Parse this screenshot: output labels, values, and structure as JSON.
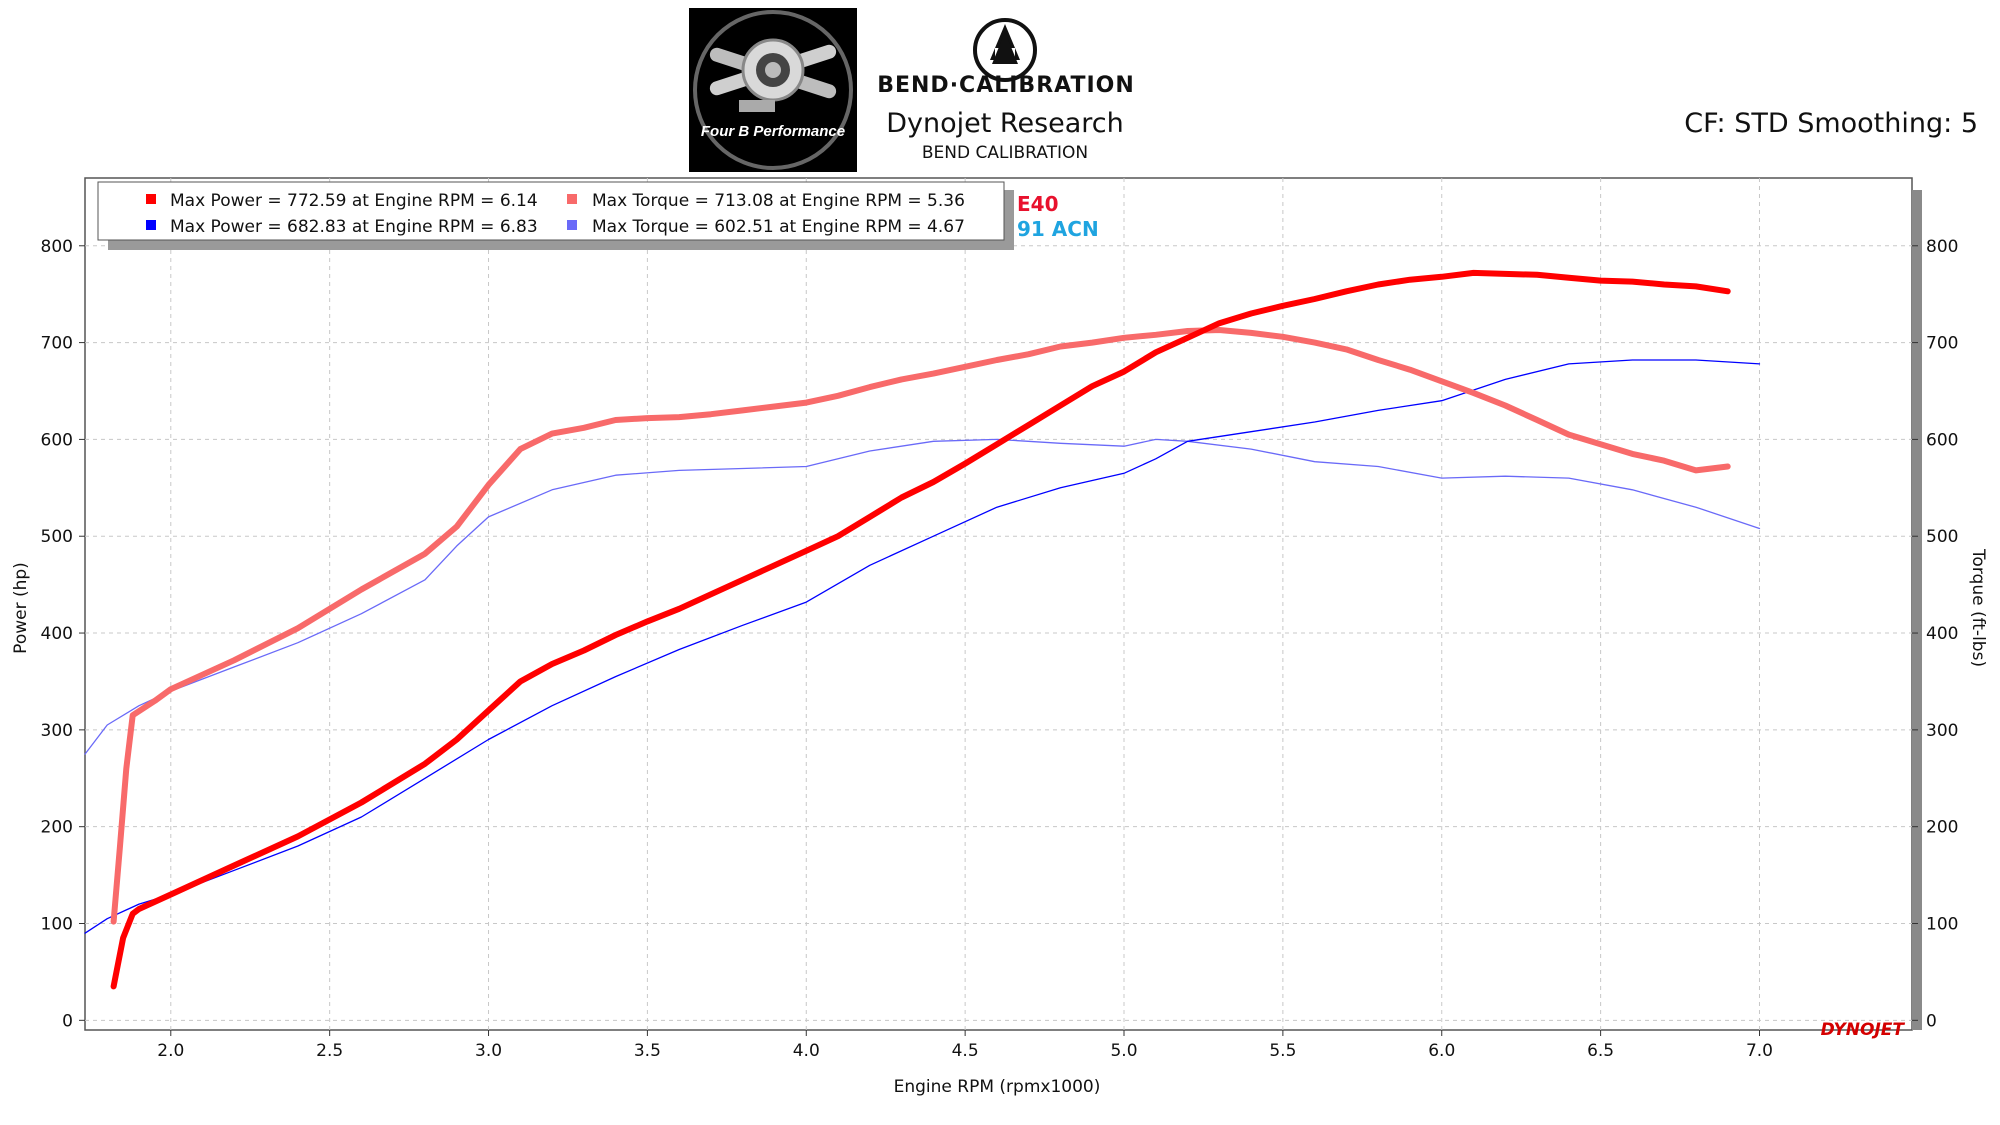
{
  "header": {
    "logo_left_text": "Four B Performance",
    "logo_right_text": "BEND·CALIBRATION",
    "title": "Dynojet Research",
    "subtitle": "BEND CALIBRATION",
    "settings": "CF: STD Smoothing: 5",
    "watermark": "DYNOJET"
  },
  "legend": {
    "items": [
      {
        "label": "Max Power = 772.59 at Engine RPM = 6.14",
        "color": "#ff0000"
      },
      {
        "label": "Max Torque = 713.08 at Engine RPM = 5.36",
        "color": "#f86a6a"
      },
      {
        "label": "Max Power = 682.83 at Engine RPM = 6.83",
        "color": "#0000ff"
      },
      {
        "label": "Max Torque = 602.51 at Engine RPM = 4.67",
        "color": "#6a6af8"
      }
    ],
    "run_labels": [
      {
        "text": "E40",
        "color": "#e8112d"
      },
      {
        "text": "91 ACN",
        "color": "#1fa4e0"
      }
    ]
  },
  "chart_data": {
    "type": "line",
    "xlabel": "Engine RPM (rpmx1000)",
    "ylabel_left": "Power (hp)",
    "ylabel_right": "Torque (ft-lbs)",
    "xlim": [
      1.73,
      7.48
    ],
    "ylim": [
      -10,
      870
    ],
    "x_ticks": [
      "2.0",
      "2.5",
      "3.0",
      "3.5",
      "4.0",
      "4.5",
      "5.0",
      "5.5",
      "6.0",
      "6.5",
      "7.0"
    ],
    "y_ticks": [
      "0",
      "100",
      "200",
      "300",
      "400",
      "500",
      "600",
      "700",
      "800"
    ],
    "grid": true,
    "series": [
      {
        "name": "E40",
        "quantity": "Power (hp)",
        "color": "#ff0000",
        "width": 6,
        "x": [
          1.82,
          1.85,
          1.88,
          1.9,
          2.0,
          2.2,
          2.4,
          2.6,
          2.8,
          2.9,
          3.0,
          3.1,
          3.2,
          3.3,
          3.4,
          3.5,
          3.6,
          3.7,
          3.8,
          3.9,
          4.0,
          4.1,
          4.2,
          4.3,
          4.4,
          4.5,
          4.6,
          4.7,
          4.8,
          4.9,
          5.0,
          5.1,
          5.2,
          5.3,
          5.4,
          5.5,
          5.6,
          5.7,
          5.8,
          5.9,
          6.0,
          6.1,
          6.2,
          6.3,
          6.4,
          6.5,
          6.6,
          6.7,
          6.8,
          6.9
        ],
        "y": [
          35,
          85,
          110,
          115,
          130,
          160,
          190,
          225,
          265,
          290,
          320,
          350,
          368,
          382,
          398,
          412,
          425,
          440,
          455,
          470,
          485,
          500,
          520,
          540,
          556,
          575,
          595,
          615,
          635,
          655,
          670,
          690,
          705,
          720,
          730,
          738,
          745,
          753,
          760,
          765,
          768,
          772,
          771,
          770,
          767,
          764,
          763,
          760,
          758,
          753
        ]
      },
      {
        "name": "E40",
        "quantity": "Torque (ft-lbs)",
        "color": "#f86a6a",
        "width": 6,
        "x": [
          1.82,
          1.84,
          1.86,
          1.88,
          1.95,
          2.0,
          2.2,
          2.4,
          2.6,
          2.8,
          2.9,
          3.0,
          3.1,
          3.2,
          3.3,
          3.4,
          3.5,
          3.6,
          3.7,
          3.8,
          3.9,
          4.0,
          4.1,
          4.2,
          4.3,
          4.4,
          4.5,
          4.6,
          4.7,
          4.8,
          4.9,
          5.0,
          5.1,
          5.2,
          5.3,
          5.4,
          5.5,
          5.6,
          5.7,
          5.8,
          5.9,
          6.0,
          6.1,
          6.2,
          6.3,
          6.4,
          6.5,
          6.6,
          6.7,
          6.8,
          6.9
        ],
        "y": [
          102,
          180,
          260,
          315,
          330,
          342,
          372,
          405,
          445,
          482,
          510,
          553,
          590,
          606,
          612,
          620,
          622,
          623,
          626,
          630,
          634,
          638,
          645,
          654,
          662,
          668,
          675,
          682,
          688,
          696,
          700,
          705,
          708,
          712,
          713,
          710,
          706,
          700,
          693,
          682,
          672,
          660,
          648,
          635,
          620,
          605,
          595,
          585,
          578,
          568,
          572
        ]
      },
      {
        "name": "91 ACN",
        "quantity": "Power (hp)",
        "color": "#0000ff",
        "width": 1.3,
        "x": [
          1.73,
          1.8,
          1.9,
          2.0,
          2.2,
          2.4,
          2.6,
          2.8,
          3.0,
          3.2,
          3.4,
          3.6,
          3.8,
          4.0,
          4.2,
          4.4,
          4.6,
          4.8,
          5.0,
          5.1,
          5.2,
          5.4,
          5.6,
          5.8,
          6.0,
          6.2,
          6.4,
          6.6,
          6.8,
          7.0
        ],
        "y": [
          90,
          105,
          120,
          130,
          155,
          180,
          210,
          250,
          290,
          325,
          355,
          383,
          408,
          432,
          470,
          500,
          530,
          550,
          565,
          580,
          598,
          608,
          618,
          630,
          640,
          662,
          678,
          682,
          682,
          678
        ]
      },
      {
        "name": "91 ACN",
        "quantity": "Torque (ft-lbs)",
        "color": "#6a6af8",
        "width": 1.3,
        "x": [
          1.73,
          1.8,
          1.9,
          2.0,
          2.2,
          2.4,
          2.6,
          2.8,
          2.9,
          3.0,
          3.2,
          3.4,
          3.6,
          3.8,
          4.0,
          4.2,
          4.4,
          4.6,
          4.8,
          5.0,
          5.1,
          5.2,
          5.4,
          5.6,
          5.8,
          6.0,
          6.2,
          6.4,
          6.6,
          6.8,
          7.0
        ],
        "y": [
          275,
          305,
          325,
          340,
          365,
          390,
          420,
          455,
          490,
          520,
          548,
          563,
          568,
          570,
          572,
          588,
          598,
          600,
          596,
          593,
          600,
          598,
          590,
          577,
          572,
          560,
          562,
          560,
          548,
          530,
          508
        ]
      }
    ]
  }
}
